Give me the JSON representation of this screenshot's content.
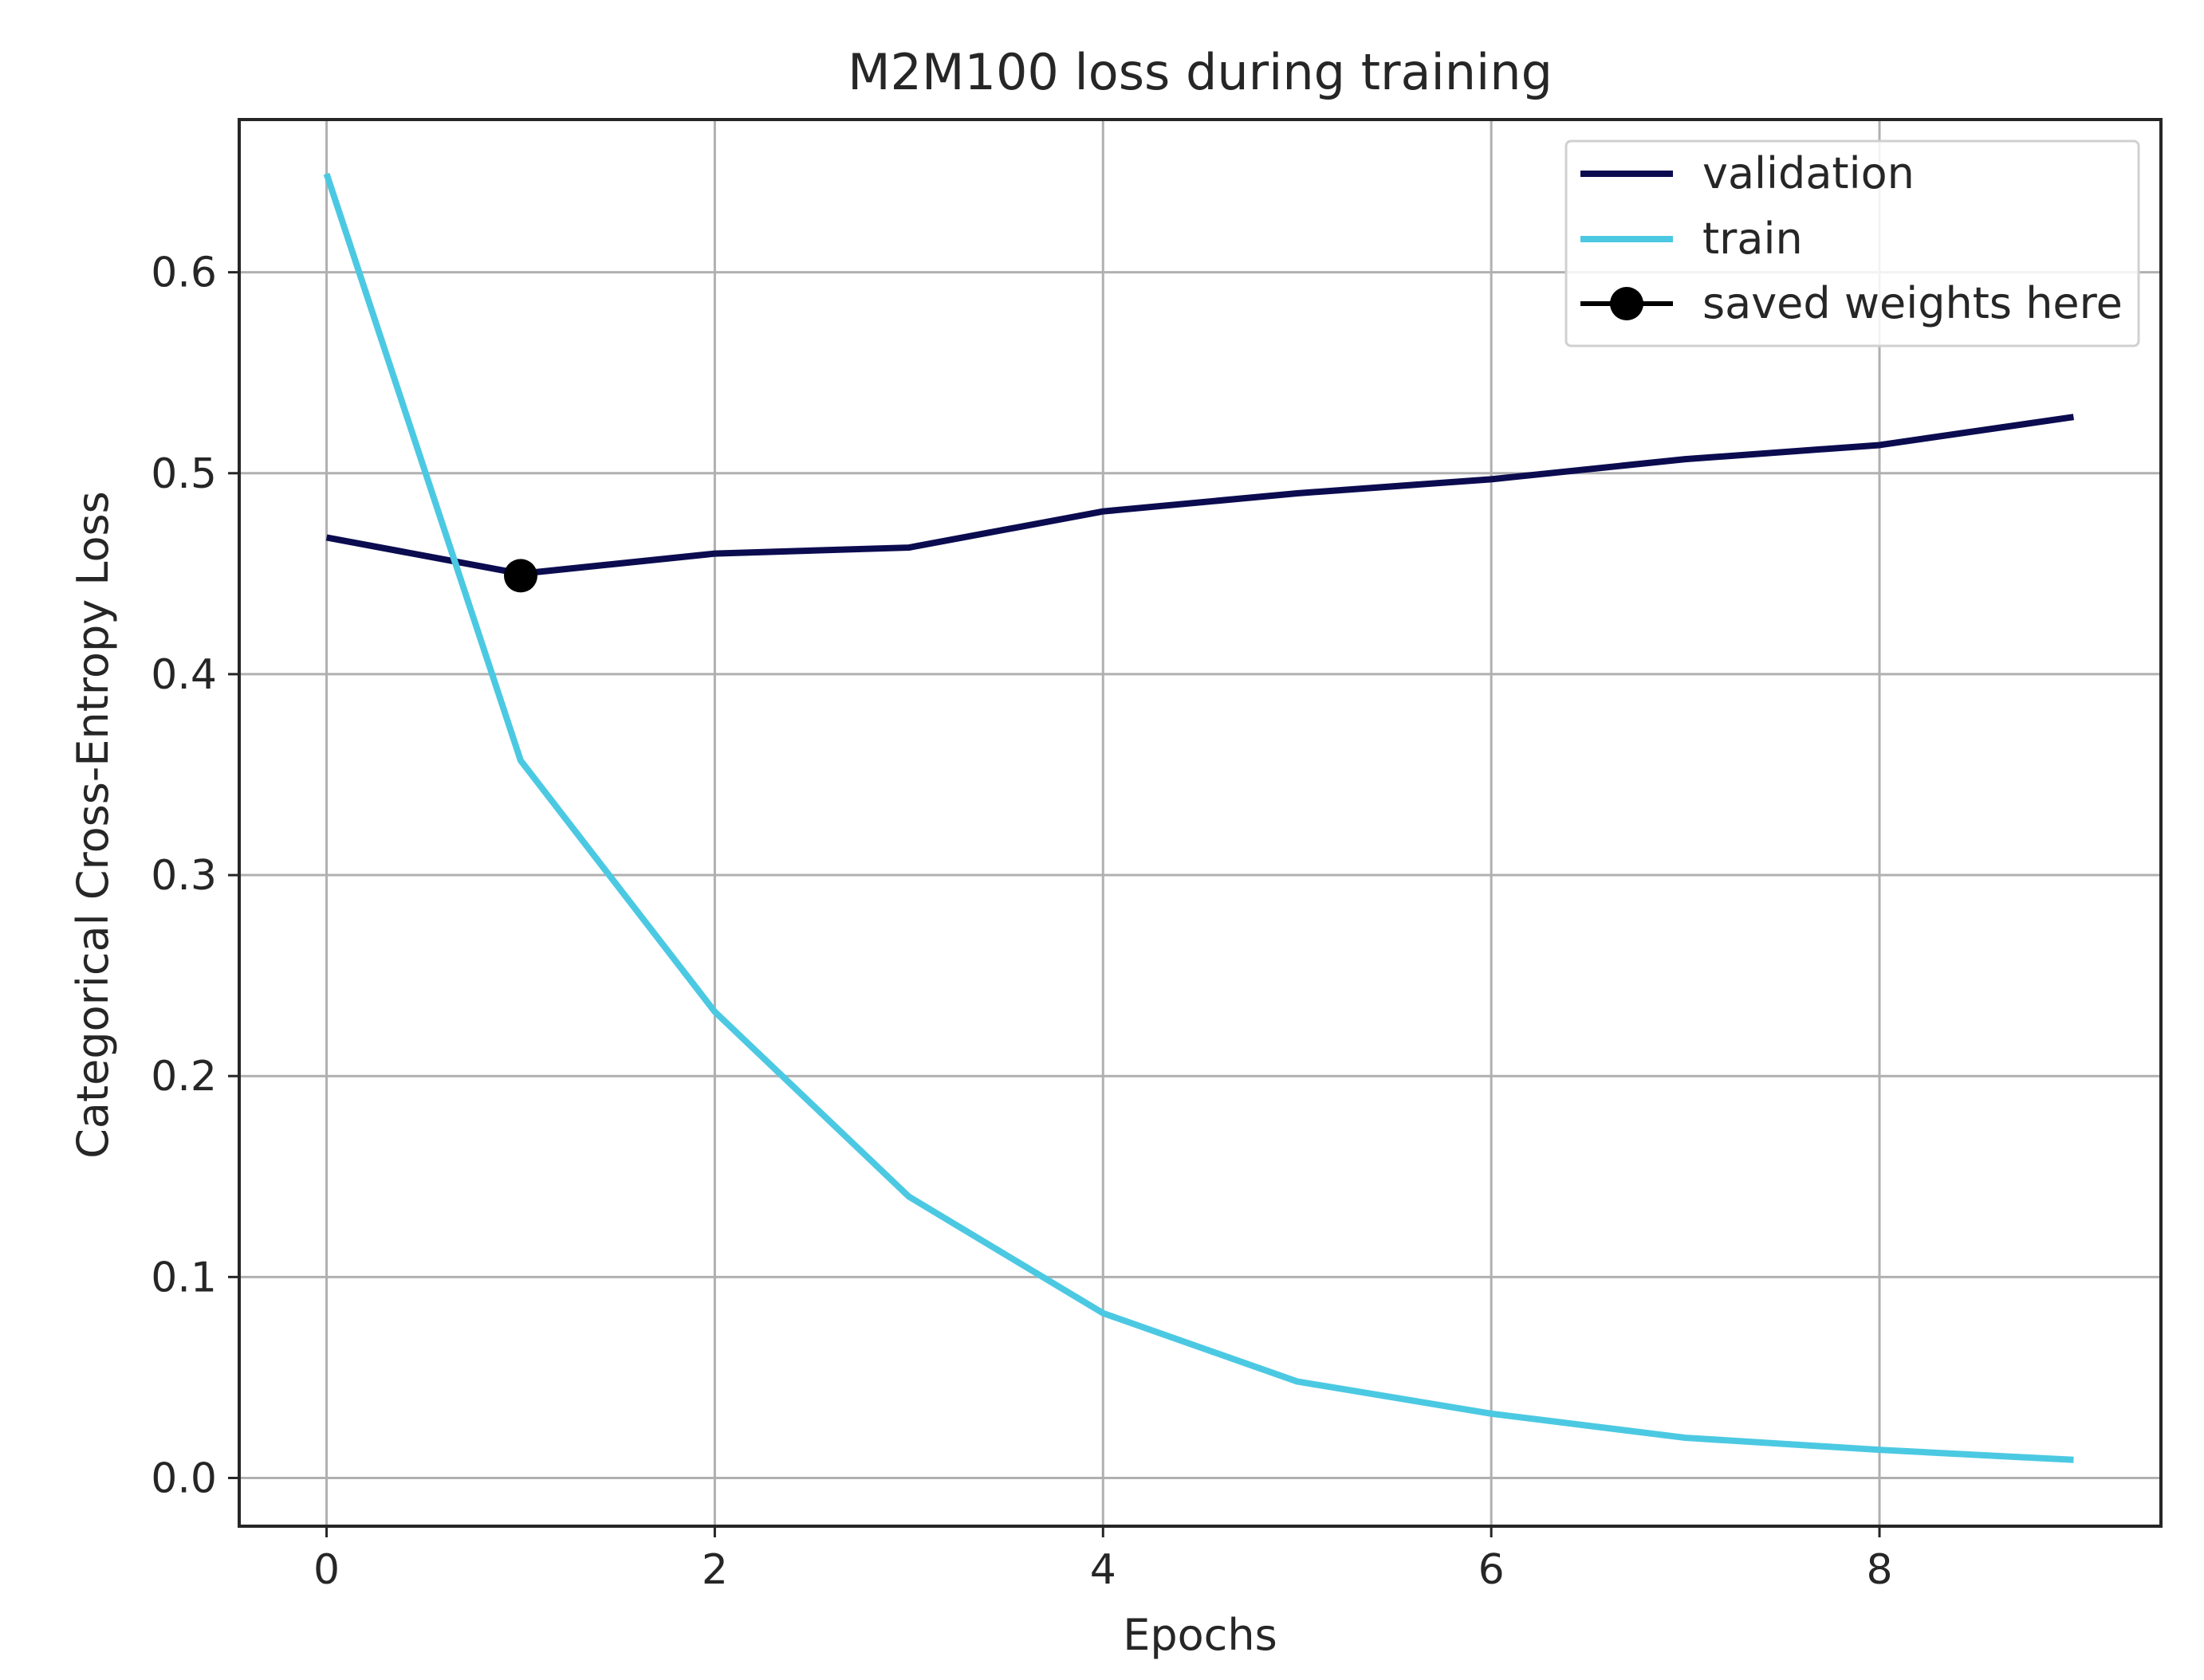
{
  "chart_data": {
    "type": "line",
    "title": "M2M100 loss during training",
    "xlabel": "Epochs",
    "ylabel": "Categorical Cross-Entropy Loss",
    "xlim": [
      -0.45,
      9.45
    ],
    "ylim": [
      -0.024,
      0.676
    ],
    "xticks": [
      0,
      2,
      4,
      6,
      8
    ],
    "yticks": [
      0.0,
      0.1,
      0.2,
      0.3,
      0.4,
      0.5,
      0.6
    ],
    "ytick_labels": [
      "0.0",
      "0.1",
      "0.2",
      "0.3",
      "0.4",
      "0.5",
      "0.6"
    ],
    "grid": true,
    "legend_position": "top-right",
    "x": [
      0,
      1,
      2,
      3,
      4,
      5,
      6,
      7,
      8,
      9
    ],
    "series": [
      {
        "name": "validation",
        "color": "#0b0b50",
        "values": [
          0.468,
          0.45,
          0.46,
          0.463,
          0.481,
          0.49,
          0.497,
          0.507,
          0.514,
          0.528
        ]
      },
      {
        "name": "train",
        "color": "#4cc9e2",
        "values": [
          0.649,
          0.357,
          0.232,
          0.14,
          0.082,
          0.048,
          0.032,
          0.02,
          0.014,
          0.009
        ]
      }
    ],
    "markers": [
      {
        "name": "saved weights here",
        "x": 1,
        "y": 0.449,
        "color": "#000000"
      }
    ]
  }
}
